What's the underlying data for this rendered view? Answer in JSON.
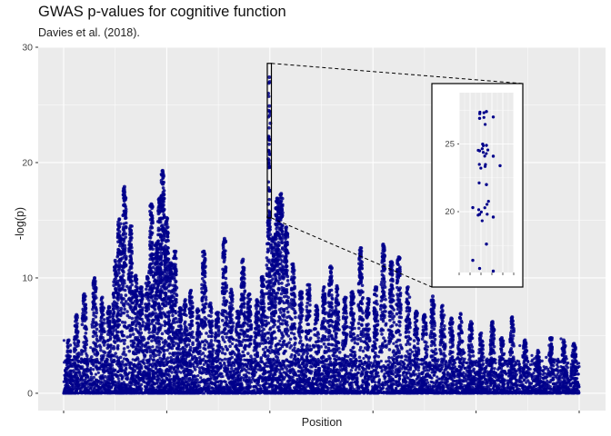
{
  "chart_data": {
    "type": "scatter",
    "title": "GWAS p-values for cognitive function",
    "subtitle": "Davies et al. (2018).",
    "xlabel": "Position",
    "ylabel": "-log(p)",
    "ylim": [
      -1.5,
      30
    ],
    "y_ticks": [
      0,
      10,
      20,
      30
    ],
    "x_ticks": [
      "",
      "",
      "",
      "",
      "",
      ""
    ],
    "point_color": "#00008B",
    "panel_background": "#EBEBEB",
    "grid": true,
    "x_extent": [
      0,
      1
    ],
    "background_band_max": 3,
    "peaks": [
      {
        "x": 0.01,
        "y": 4.6
      },
      {
        "x": 0.025,
        "y": 6.8
      },
      {
        "x": 0.04,
        "y": 8.6
      },
      {
        "x": 0.06,
        "y": 10.0
      },
      {
        "x": 0.075,
        "y": 8.3
      },
      {
        "x": 0.088,
        "y": 7.5
      },
      {
        "x": 0.1,
        "y": 11.5
      },
      {
        "x": 0.108,
        "y": 15.1
      },
      {
        "x": 0.118,
        "y": 17.9
      },
      {
        "x": 0.13,
        "y": 14.5
      },
      {
        "x": 0.14,
        "y": 10.2
      },
      {
        "x": 0.15,
        "y": 9.2
      },
      {
        "x": 0.162,
        "y": 10.1
      },
      {
        "x": 0.17,
        "y": 16.4
      },
      {
        "x": 0.18,
        "y": 13.0
      },
      {
        "x": 0.186,
        "y": 16.9
      },
      {
        "x": 0.192,
        "y": 19.3
      },
      {
        "x": 0.2,
        "y": 15.2
      },
      {
        "x": 0.208,
        "y": 11.3
      },
      {
        "x": 0.216,
        "y": 12.3
      },
      {
        "x": 0.226,
        "y": 7.4
      },
      {
        "x": 0.236,
        "y": 8.1
      },
      {
        "x": 0.247,
        "y": 8.9
      },
      {
        "x": 0.26,
        "y": 7.3
      },
      {
        "x": 0.272,
        "y": 12.3
      },
      {
        "x": 0.285,
        "y": 7.8
      },
      {
        "x": 0.298,
        "y": 7.0
      },
      {
        "x": 0.312,
        "y": 13.4
      },
      {
        "x": 0.325,
        "y": 9.0
      },
      {
        "x": 0.338,
        "y": 7.1
      },
      {
        "x": 0.348,
        "y": 11.6
      },
      {
        "x": 0.36,
        "y": 8.6
      },
      {
        "x": 0.375,
        "y": 8.1
      },
      {
        "x": 0.386,
        "y": 10.1
      },
      {
        "x": 0.398,
        "y": 15.4
      },
      {
        "x": 0.406,
        "y": 13.5
      },
      {
        "x": 0.414,
        "y": 16.9
      },
      {
        "x": 0.422,
        "y": 17.3
      },
      {
        "x": 0.432,
        "y": 14.4
      },
      {
        "x": 0.445,
        "y": 11.2
      },
      {
        "x": 0.46,
        "y": 8.8
      },
      {
        "x": 0.475,
        "y": 9.4
      },
      {
        "x": 0.49,
        "y": 7.6
      },
      {
        "x": 0.505,
        "y": 9.2
      },
      {
        "x": 0.518,
        "y": 11.0
      },
      {
        "x": 0.53,
        "y": 9.3
      },
      {
        "x": 0.546,
        "y": 8.3
      },
      {
        "x": 0.56,
        "y": 8.8
      },
      {
        "x": 0.576,
        "y": 12.6
      },
      {
        "x": 0.59,
        "y": 8.2
      },
      {
        "x": 0.605,
        "y": 9.2
      },
      {
        "x": 0.62,
        "y": 12.9
      },
      {
        "x": 0.636,
        "y": 11.4
      },
      {
        "x": 0.65,
        "y": 11.8
      },
      {
        "x": 0.668,
        "y": 9.2
      },
      {
        "x": 0.684,
        "y": 7.1
      },
      {
        "x": 0.7,
        "y": 6.8
      },
      {
        "x": 0.716,
        "y": 8.4
      },
      {
        "x": 0.735,
        "y": 7.6
      },
      {
        "x": 0.752,
        "y": 6.5
      },
      {
        "x": 0.77,
        "y": 6.9
      },
      {
        "x": 0.79,
        "y": 6.2
      },
      {
        "x": 0.81,
        "y": 5.2
      },
      {
        "x": 0.832,
        "y": 6.2
      },
      {
        "x": 0.85,
        "y": 4.8
      },
      {
        "x": 0.87,
        "y": 6.6
      },
      {
        "x": 0.895,
        "y": 4.6
      },
      {
        "x": 0.92,
        "y": 3.7
      },
      {
        "x": 0.945,
        "y": 4.8
      },
      {
        "x": 0.97,
        "y": 4.6
      },
      {
        "x": 0.99,
        "y": 4.3
      }
    ],
    "highlight": {
      "x_range": [
        0.395,
        0.403
      ],
      "y_range": [
        15.2,
        28.6
      ],
      "points": [
        {
          "x": 0.399,
          "y": 27.4
        },
        {
          "x": 0.4,
          "y": 27.0
        },
        {
          "x": 0.398,
          "y": 26.9
        },
        {
          "x": 0.399,
          "y": 24.9
        },
        {
          "x": 0.398,
          "y": 24.5
        },
        {
          "x": 0.4,
          "y": 24.1
        },
        {
          "x": 0.401,
          "y": 23.4
        },
        {
          "x": 0.399,
          "y": 22.0
        },
        {
          "x": 0.397,
          "y": 20.3
        },
        {
          "x": 0.398,
          "y": 19.8
        },
        {
          "x": 0.4,
          "y": 19.6
        },
        {
          "x": 0.399,
          "y": 17.6
        },
        {
          "x": 0.397,
          "y": 16.4
        },
        {
          "x": 0.398,
          "y": 15.8
        },
        {
          "x": 0.4,
          "y": 15.6
        }
      ]
    },
    "inset": {
      "ylim": [
        15.5,
        28.8
      ],
      "y_ticks": [
        20,
        25
      ]
    }
  }
}
